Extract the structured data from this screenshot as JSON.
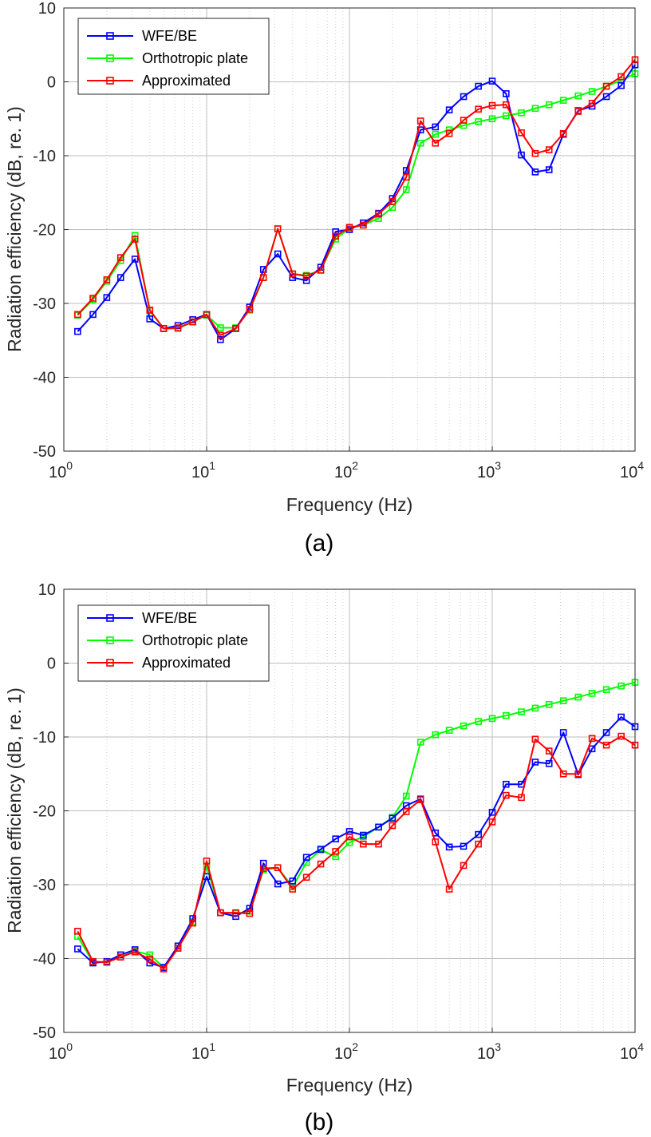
{
  "colors": {
    "wfe": "#0000ff",
    "ortho": "#00ff00",
    "approx": "#ff0000",
    "grid": "#cfcfcf",
    "axis": "#262626"
  },
  "chart_data": [
    {
      "type": "line",
      "caption": "(a)",
      "xlabel": "Frequency (Hz)",
      "ylabel": "Radiation efficiency (dB, re. 1)",
      "xscale": "log",
      "xlim": [
        1,
        10000
      ],
      "ylim": [
        -50,
        10
      ],
      "yticks": [
        10,
        0,
        -10,
        -20,
        -30,
        -40,
        -50
      ],
      "xticks": [
        {
          "base": "10",
          "exp": "0"
        },
        {
          "base": "10",
          "exp": "1"
        },
        {
          "base": "10",
          "exp": "2"
        },
        {
          "base": "10",
          "exp": "3"
        },
        {
          "base": "10",
          "exp": "4"
        }
      ],
      "grid": true,
      "legend_position": "top-left",
      "x": [
        1.25,
        1.6,
        2,
        2.5,
        3.15,
        4,
        5,
        6.3,
        8,
        10,
        12.5,
        16,
        20,
        25,
        31.5,
        40,
        50,
        63,
        80,
        100,
        125,
        160,
        200,
        250,
        315,
        400,
        500,
        630,
        800,
        1000,
        1250,
        1600,
        2000,
        2500,
        3150,
        4000,
        5000,
        6300,
        8000,
        10000
      ],
      "series": [
        {
          "name": "WFE/BE",
          "values": [
            -33.8,
            -31.5,
            -29.2,
            -26.5,
            -24.0,
            -32.1,
            -33.4,
            -33.0,
            -32.2,
            -31.5,
            -34.9,
            -33.4,
            -30.5,
            -25.4,
            -23.3,
            -26.5,
            -26.9,
            -25.1,
            -20.3,
            -20.0,
            -19.1,
            -17.8,
            -15.8,
            -12.0,
            -6.5,
            -6.1,
            -3.8,
            -2.0,
            -0.6,
            0.1,
            -1.6,
            -9.9,
            -12.2,
            -11.9,
            -7.1,
            -3.9,
            -3.3,
            -2.0,
            -0.5,
            2.3
          ]
        },
        {
          "name": "Orthotropic plate",
          "values": [
            -31.6,
            -29.5,
            -27.0,
            -24.2,
            -20.8,
            -31.0,
            -33.4,
            -33.4,
            -32.5,
            -31.6,
            -33.3,
            -33.3,
            -30.9,
            -26.5,
            -19.9,
            -26.0,
            -26.2,
            -25.5,
            -21.3,
            -19.8,
            -19.4,
            -18.5,
            -17.0,
            -14.6,
            -8.3,
            -7.1,
            -6.5,
            -5.9,
            -5.4,
            -5.0,
            -4.6,
            -4.2,
            -3.6,
            -3.1,
            -2.5,
            -1.9,
            -1.3,
            -0.6,
            0.2,
            1.1
          ]
        },
        {
          "name": "Approximated",
          "values": [
            -31.5,
            -29.3,
            -26.8,
            -23.8,
            -21.3,
            -30.9,
            -33.4,
            -33.3,
            -32.5,
            -31.5,
            -34.3,
            -33.4,
            -30.8,
            -26.5,
            -19.9,
            -26.0,
            -26.3,
            -25.5,
            -20.9,
            -19.7,
            -19.4,
            -17.9,
            -16.2,
            -12.9,
            -5.3,
            -8.3,
            -7.0,
            -5.2,
            -3.7,
            -3.2,
            -3.1,
            -6.9,
            -9.7,
            -9.2,
            -7.0,
            -4.0,
            -2.9,
            -0.6,
            0.7,
            3.0
          ]
        }
      ]
    },
    {
      "type": "line",
      "caption": "(b)",
      "xlabel": "Frequency (Hz)",
      "ylabel": "Radiation efficiency (dB, re. 1)",
      "xscale": "log",
      "xlim": [
        1,
        10000
      ],
      "ylim": [
        -50,
        10
      ],
      "yticks": [
        10,
        0,
        -10,
        -20,
        -30,
        -40,
        -50
      ],
      "xticks": [
        {
          "base": "10",
          "exp": "0"
        },
        {
          "base": "10",
          "exp": "1"
        },
        {
          "base": "10",
          "exp": "2"
        },
        {
          "base": "10",
          "exp": "3"
        },
        {
          "base": "10",
          "exp": "4"
        }
      ],
      "grid": true,
      "legend_position": "top-left",
      "x": [
        1.25,
        1.6,
        2,
        2.5,
        3.15,
        4,
        5,
        6.3,
        8,
        10,
        12.5,
        16,
        20,
        25,
        31.5,
        40,
        50,
        63,
        80,
        100,
        125,
        160,
        200,
        250,
        315,
        400,
        500,
        630,
        800,
        1000,
        1250,
        1600,
        2000,
        2500,
        3150,
        4000,
        5000,
        6300,
        8000,
        10000
      ],
      "series": [
        {
          "name": "WFE/BE",
          "values": [
            -38.7,
            -40.6,
            -40.4,
            -39.5,
            -38.8,
            -40.6,
            -41.2,
            -38.3,
            -34.6,
            -28.9,
            -33.8,
            -34.3,
            -33.2,
            -27.1,
            -29.9,
            -29.5,
            -26.3,
            -25.2,
            -23.8,
            -22.8,
            -23.3,
            -22.2,
            -21.0,
            -19.3,
            -18.4,
            -23.0,
            -24.9,
            -24.8,
            -23.2,
            -20.2,
            -16.4,
            -16.4,
            -13.4,
            -13.6,
            -9.4,
            -15.1,
            -11.6,
            -9.4,
            -7.3,
            -8.6
          ]
        },
        {
          "name": "Orthotropic plate",
          "values": [
            -37.0,
            -40.5,
            -40.5,
            -39.8,
            -39.0,
            -39.5,
            -41.2,
            -38.6,
            -35.0,
            -27.5,
            -33.8,
            -33.9,
            -33.6,
            -28.0,
            -27.7,
            -30.3,
            -27.0,
            -25.3,
            -26.2,
            -24.3,
            -23.5,
            -22.2,
            -20.9,
            -18.0,
            -10.7,
            -9.7,
            -9.1,
            -8.5,
            -7.9,
            -7.5,
            -7.1,
            -6.6,
            -6.1,
            -5.6,
            -5.1,
            -4.6,
            -4.1,
            -3.6,
            -3.1,
            -2.6
          ]
        },
        {
          "name": "Approximated",
          "values": [
            -36.3,
            -40.4,
            -40.5,
            -39.8,
            -39.1,
            -40.1,
            -41.4,
            -38.6,
            -35.2,
            -26.8,
            -33.8,
            -33.8,
            -33.9,
            -27.8,
            -27.7,
            -30.6,
            -29.0,
            -27.2,
            -25.5,
            -23.5,
            -24.5,
            -24.5,
            -22.0,
            -20.1,
            -18.5,
            -24.2,
            -30.6,
            -27.4,
            -24.5,
            -21.5,
            -17.9,
            -18.2,
            -10.3,
            -11.9,
            -15.0,
            -15.0,
            -10.2,
            -11.1,
            -9.9,
            -11.1
          ]
        }
      ]
    }
  ]
}
